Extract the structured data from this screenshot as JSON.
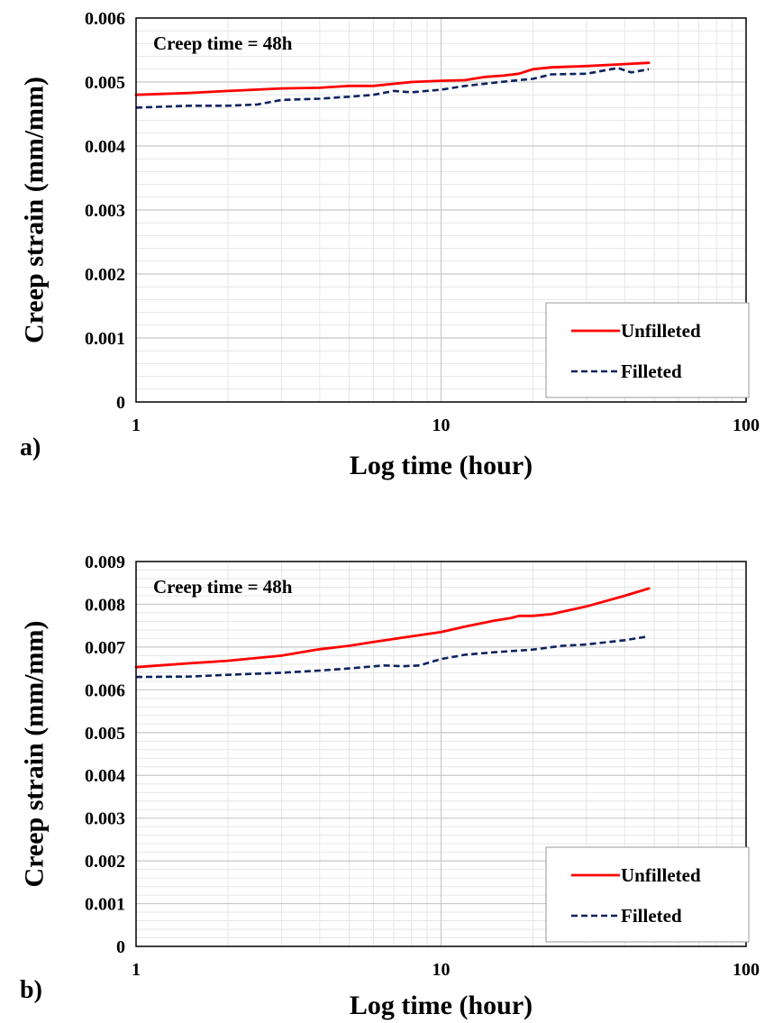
{
  "chart_data": [
    {
      "type": "line",
      "panel_label": "a)",
      "annotation": "Creep time = 48h",
      "xlabel": "Log time (hour)",
      "ylabel": "Creep strain (mm/mm)",
      "xscale": "log",
      "xlim": [
        1,
        100
      ],
      "ylim": [
        0,
        0.006
      ],
      "xticks": [
        "1",
        "10",
        "100"
      ],
      "yticks": [
        "0",
        "0.001",
        "0.002",
        "0.003",
        "0.004",
        "0.005",
        "0.006"
      ],
      "grid": true,
      "legend_position": "bottom-right",
      "series": [
        {
          "name": "Unfilleted",
          "color": "#ff0000",
          "style": "solid",
          "x": [
            1,
            1.5,
            2,
            3,
            4,
            5,
            6,
            8,
            10,
            12,
            14,
            16,
            18,
            20,
            23,
            30,
            40,
            48
          ],
          "y": [
            0.0048,
            0.00483,
            0.00486,
            0.0049,
            0.00491,
            0.00494,
            0.00494,
            0.005,
            0.00502,
            0.00503,
            0.00508,
            0.0051,
            0.00513,
            0.0052,
            0.00523,
            0.00525,
            0.00528,
            0.0053
          ]
        },
        {
          "name": "Filleted",
          "color": "#0d2260",
          "style": "dashed",
          "x": [
            1,
            1.5,
            2,
            2.5,
            3,
            4,
            5,
            6,
            7,
            8,
            10,
            12,
            15,
            18,
            20,
            23,
            30,
            38,
            42,
            48
          ],
          "y": [
            0.0046,
            0.00463,
            0.00463,
            0.00465,
            0.00472,
            0.00474,
            0.00477,
            0.0048,
            0.00486,
            0.00484,
            0.00488,
            0.00494,
            0.00499,
            0.00503,
            0.00505,
            0.00512,
            0.00513,
            0.00522,
            0.00515,
            0.0052
          ]
        }
      ]
    },
    {
      "type": "line",
      "panel_label": "b)",
      "annotation": "Creep time = 48h",
      "xlabel": "Log time (hour)",
      "ylabel": "Creep strain (mm/mm)",
      "xscale": "log",
      "xlim": [
        1,
        100
      ],
      "ylim": [
        0,
        0.009
      ],
      "xticks": [
        "1",
        "10",
        "100"
      ],
      "yticks": [
        "0",
        "0.001",
        "0.002",
        "0.003",
        "0.004",
        "0.005",
        "0.006",
        "0.007",
        "0.008",
        "0.009"
      ],
      "grid": true,
      "legend_position": "bottom-right",
      "series": [
        {
          "name": "Unfilleted",
          "color": "#ff0000",
          "style": "solid",
          "x": [
            1,
            1.5,
            2,
            3,
            4,
            5,
            6,
            8,
            10,
            12,
            15,
            17,
            18,
            20,
            23,
            30,
            40,
            48
          ],
          "y": [
            0.00653,
            0.00662,
            0.00668,
            0.0068,
            0.00695,
            0.00703,
            0.00712,
            0.00725,
            0.00735,
            0.00748,
            0.00762,
            0.00768,
            0.00773,
            0.00773,
            0.00777,
            0.00795,
            0.0082,
            0.00837
          ]
        },
        {
          "name": "Filleted",
          "color": "#0d2260",
          "style": "dashed",
          "x": [
            1,
            1.5,
            2,
            3,
            4,
            5,
            6.5,
            7.5,
            8.5,
            10,
            12,
            15,
            20,
            25,
            30,
            40,
            48
          ],
          "y": [
            0.0063,
            0.00631,
            0.00635,
            0.0064,
            0.00645,
            0.0065,
            0.00657,
            0.00655,
            0.00657,
            0.00672,
            0.00682,
            0.00688,
            0.00694,
            0.00703,
            0.00706,
            0.00716,
            0.00725
          ]
        }
      ]
    }
  ]
}
